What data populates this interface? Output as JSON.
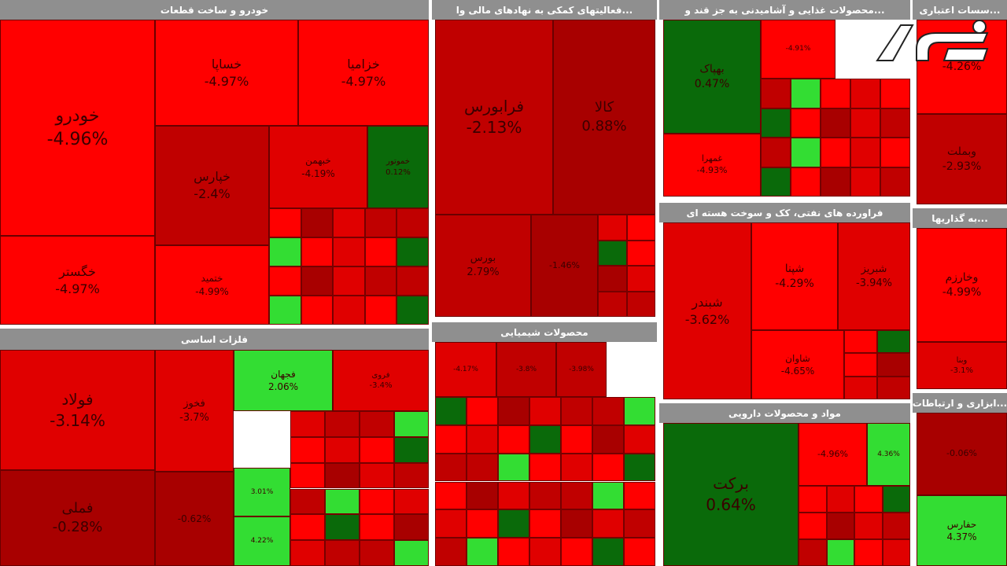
{
  "sectors": [
    {
      "title": "خودرو و ساخت قطعات",
      "tiles": [
        {
          "name": "خودرو",
          "change": "-4.96%"
        },
        {
          "name": "خگستر",
          "change": "-4.97%"
        },
        {
          "name": "خساپا",
          "change": "-4.97%"
        },
        {
          "name": "خزامیا",
          "change": "-4.97%"
        },
        {
          "name": "خپارس",
          "change": "-2.4%"
        },
        {
          "name": "خبهمن",
          "change": "-4.19%"
        },
        {
          "name": "خموتور",
          "change": "0.12%"
        },
        {
          "name": "ختمید",
          "change": "-4.99%"
        }
      ]
    },
    {
      "title": "...فعالیتهای کمکی به نهادهای مالی وا",
      "tiles": [
        {
          "name": "فرابورس",
          "change": "-2.13%"
        },
        {
          "name": "کالا",
          "change": "0.88%"
        },
        {
          "name": "بورس",
          "change": "2.79%"
        },
        {
          "change": "-1.46%"
        }
      ]
    },
    {
      "title": "...محصولات غذایی و آشامیدنی به جز قند و",
      "tiles": [
        {
          "name": "بهپاک",
          "change": "0.47%"
        },
        {
          "name": "غمهرا",
          "change": "-4.93%"
        },
        {
          "change": "-4.91%"
        }
      ]
    },
    {
      "title": "...سسات اعتباری",
      "tiles": [
        {
          "change": "-4.26%"
        },
        {
          "name": "وبملت",
          "change": "-2.93%"
        }
      ]
    },
    {
      "title": "فراورده های نفتی، کک و سوخت هسته ای",
      "tiles": [
        {
          "name": "شبندر",
          "change": "-3.62%"
        },
        {
          "name": "شپنا",
          "change": "-4.29%"
        },
        {
          "name": "شبریز",
          "change": "-3.94%"
        },
        {
          "name": "شاوان",
          "change": "-4.65%"
        }
      ]
    },
    {
      "title": "...به گذاریها",
      "tiles": [
        {
          "name": "وخارزم",
          "change": "-4.99%"
        },
        {
          "name": "وبنا",
          "change": "-3.1%"
        }
      ]
    },
    {
      "title": "فلزات اساسی",
      "tiles": [
        {
          "name": "فولاد",
          "change": "-3.14%"
        },
        {
          "name": "فملی",
          "change": "-0.28%"
        },
        {
          "name": "فخوز",
          "change": "-3.7%"
        },
        {
          "name": "فجهان",
          "change": "2.06%"
        },
        {
          "name": "فروی",
          "change": "-3.4%"
        },
        {
          "change": "-0.62%"
        },
        {
          "change": "3.01%"
        },
        {
          "change": "4.22%"
        }
      ]
    },
    {
      "title": "محصولات شیمیایی",
      "tiles": [
        {
          "change": "-4.17%"
        },
        {
          "change": "-3.8%"
        },
        {
          "change": "-3.98%"
        }
      ]
    },
    {
      "title": "مواد و محصولات دارویی",
      "tiles": [
        {
          "name": "برکت",
          "change": "0.64%"
        },
        {
          "change": "-4.96%"
        },
        {
          "change": "4.36%"
        }
      ]
    },
    {
      "title": "...ابزاری و ارتباطات",
      "tiles": [
        {
          "change": "-0.06%"
        },
        {
          "name": "حفارس",
          "change": "4.37%"
        }
      ]
    }
  ]
}
